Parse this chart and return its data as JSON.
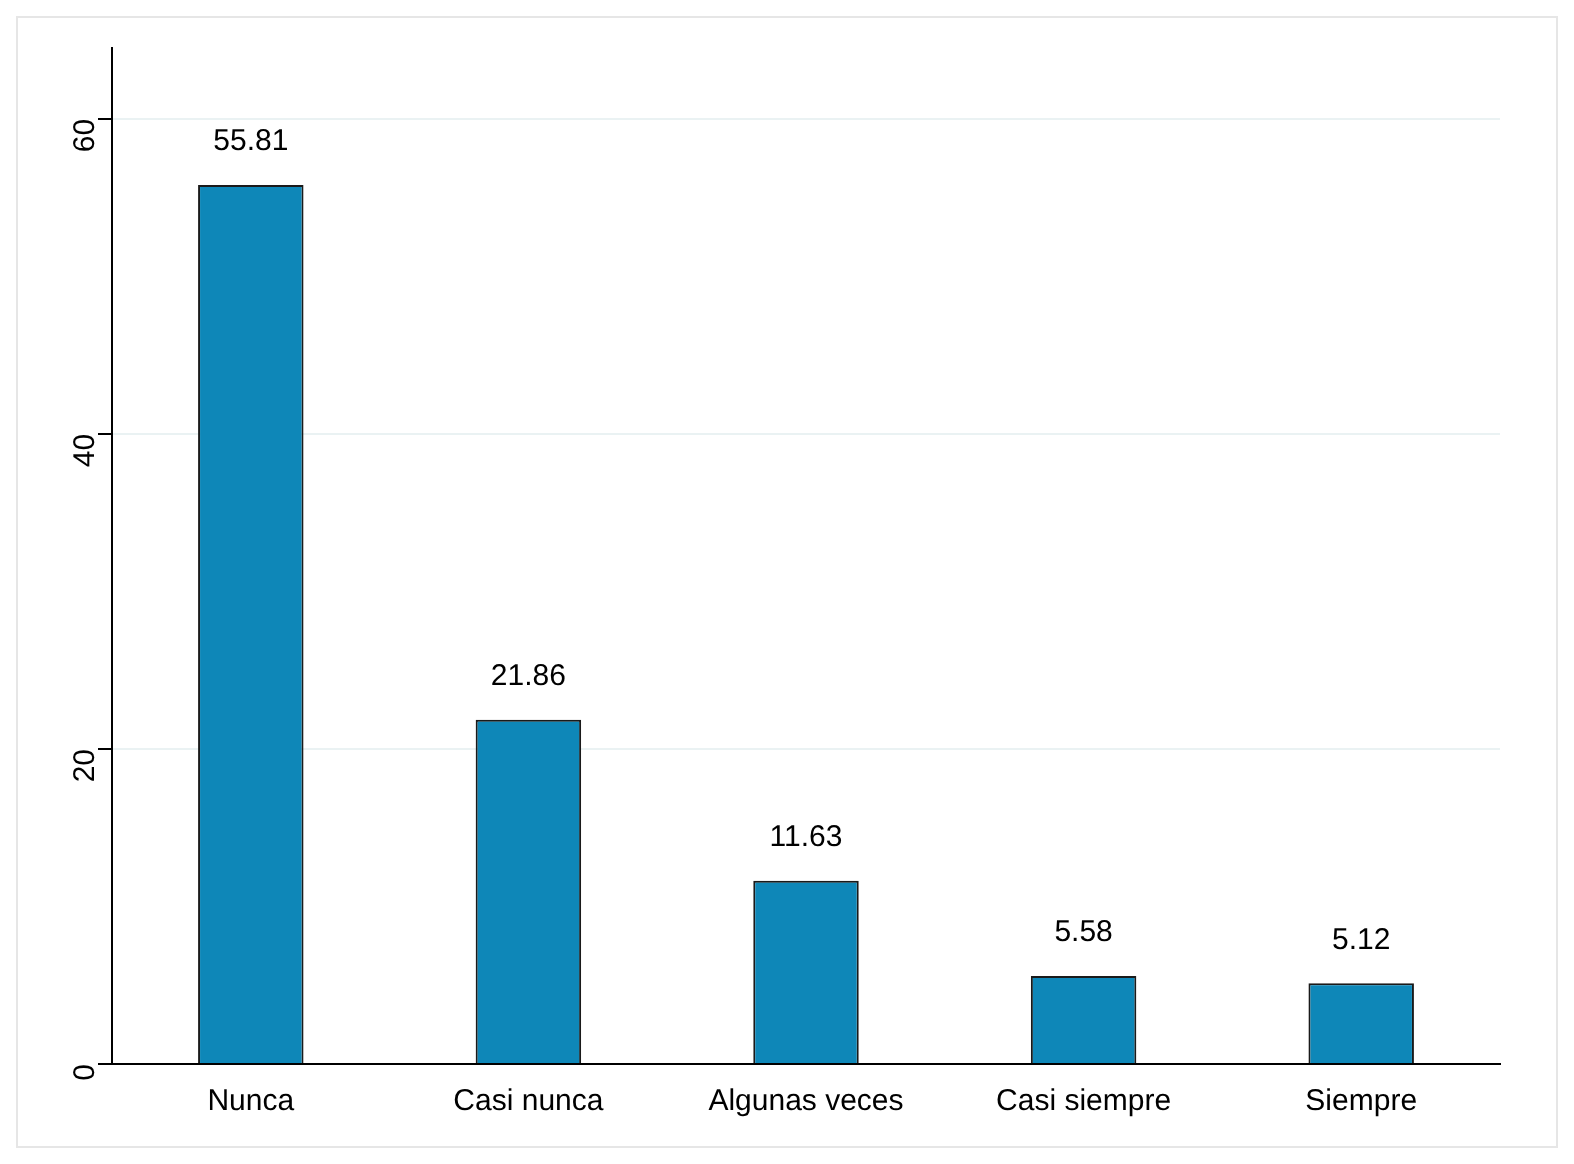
{
  "chart_data": {
    "type": "bar",
    "categories": [
      "Nunca",
      "Casi nunca",
      "Algunas veces",
      "Casi siempre",
      "Siempre"
    ],
    "values": [
      55.81,
      21.86,
      11.63,
      5.58,
      5.12
    ],
    "color": "#0e87b8",
    "ylim": [
      0,
      64.5
    ],
    "yticks": [
      0,
      20,
      40,
      60
    ],
    "grid": "y",
    "data_labels": true,
    "legend": false
  }
}
